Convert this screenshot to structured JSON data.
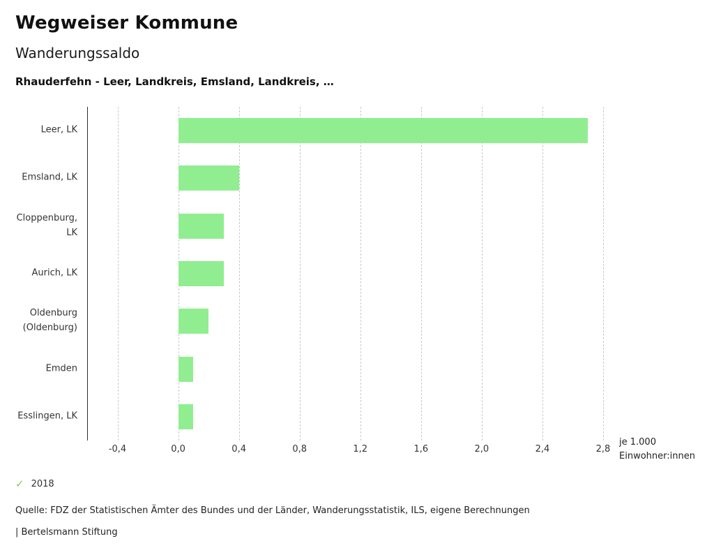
{
  "header": {
    "title": "Wegweiser Kommune",
    "subtitle": "Wanderungssaldo",
    "selection": "Rhauderfehn - Leer, Landkreis, Emsland, Landkreis, …"
  },
  "chart_data": {
    "type": "bar",
    "orientation": "horizontal",
    "title": "Wanderungssaldo",
    "categories": [
      "Leer, LK",
      "Emsland, LK",
      "Cloppenburg,\nLK",
      "Aurich, LK",
      "Oldenburg\n(Oldenburg)",
      "Emden",
      "Esslingen, LK"
    ],
    "values": [
      2.7,
      0.4,
      0.3,
      0.3,
      0.2,
      0.1,
      0.1
    ],
    "series_name": "2018",
    "xlim": [
      -0.6,
      2.8
    ],
    "ticks": [
      -0.4,
      0.0,
      0.4,
      0.8,
      1.2,
      1.6,
      2.0,
      2.4,
      2.8
    ],
    "tick_labels": [
      "-0,4",
      "0,0",
      "0,4",
      "0,8",
      "1,2",
      "1,6",
      "2,0",
      "2,4",
      "2,8"
    ],
    "unit_label_line1": "je 1.000",
    "unit_label_line2": "Einwohner:innen",
    "bar_color": "#90ee90",
    "grid": true,
    "legend_position": "bottom-left"
  },
  "legend": {
    "check_icon": "✓",
    "check_color": "#83cf4e",
    "year": "2018"
  },
  "footer": {
    "source": "Quelle: FDZ der Statistischen Ämter des Bundes und der Länder, Wanderungsstatistik, ILS, eigene Berechnungen",
    "branding": "| Bertelsmann Stiftung"
  }
}
